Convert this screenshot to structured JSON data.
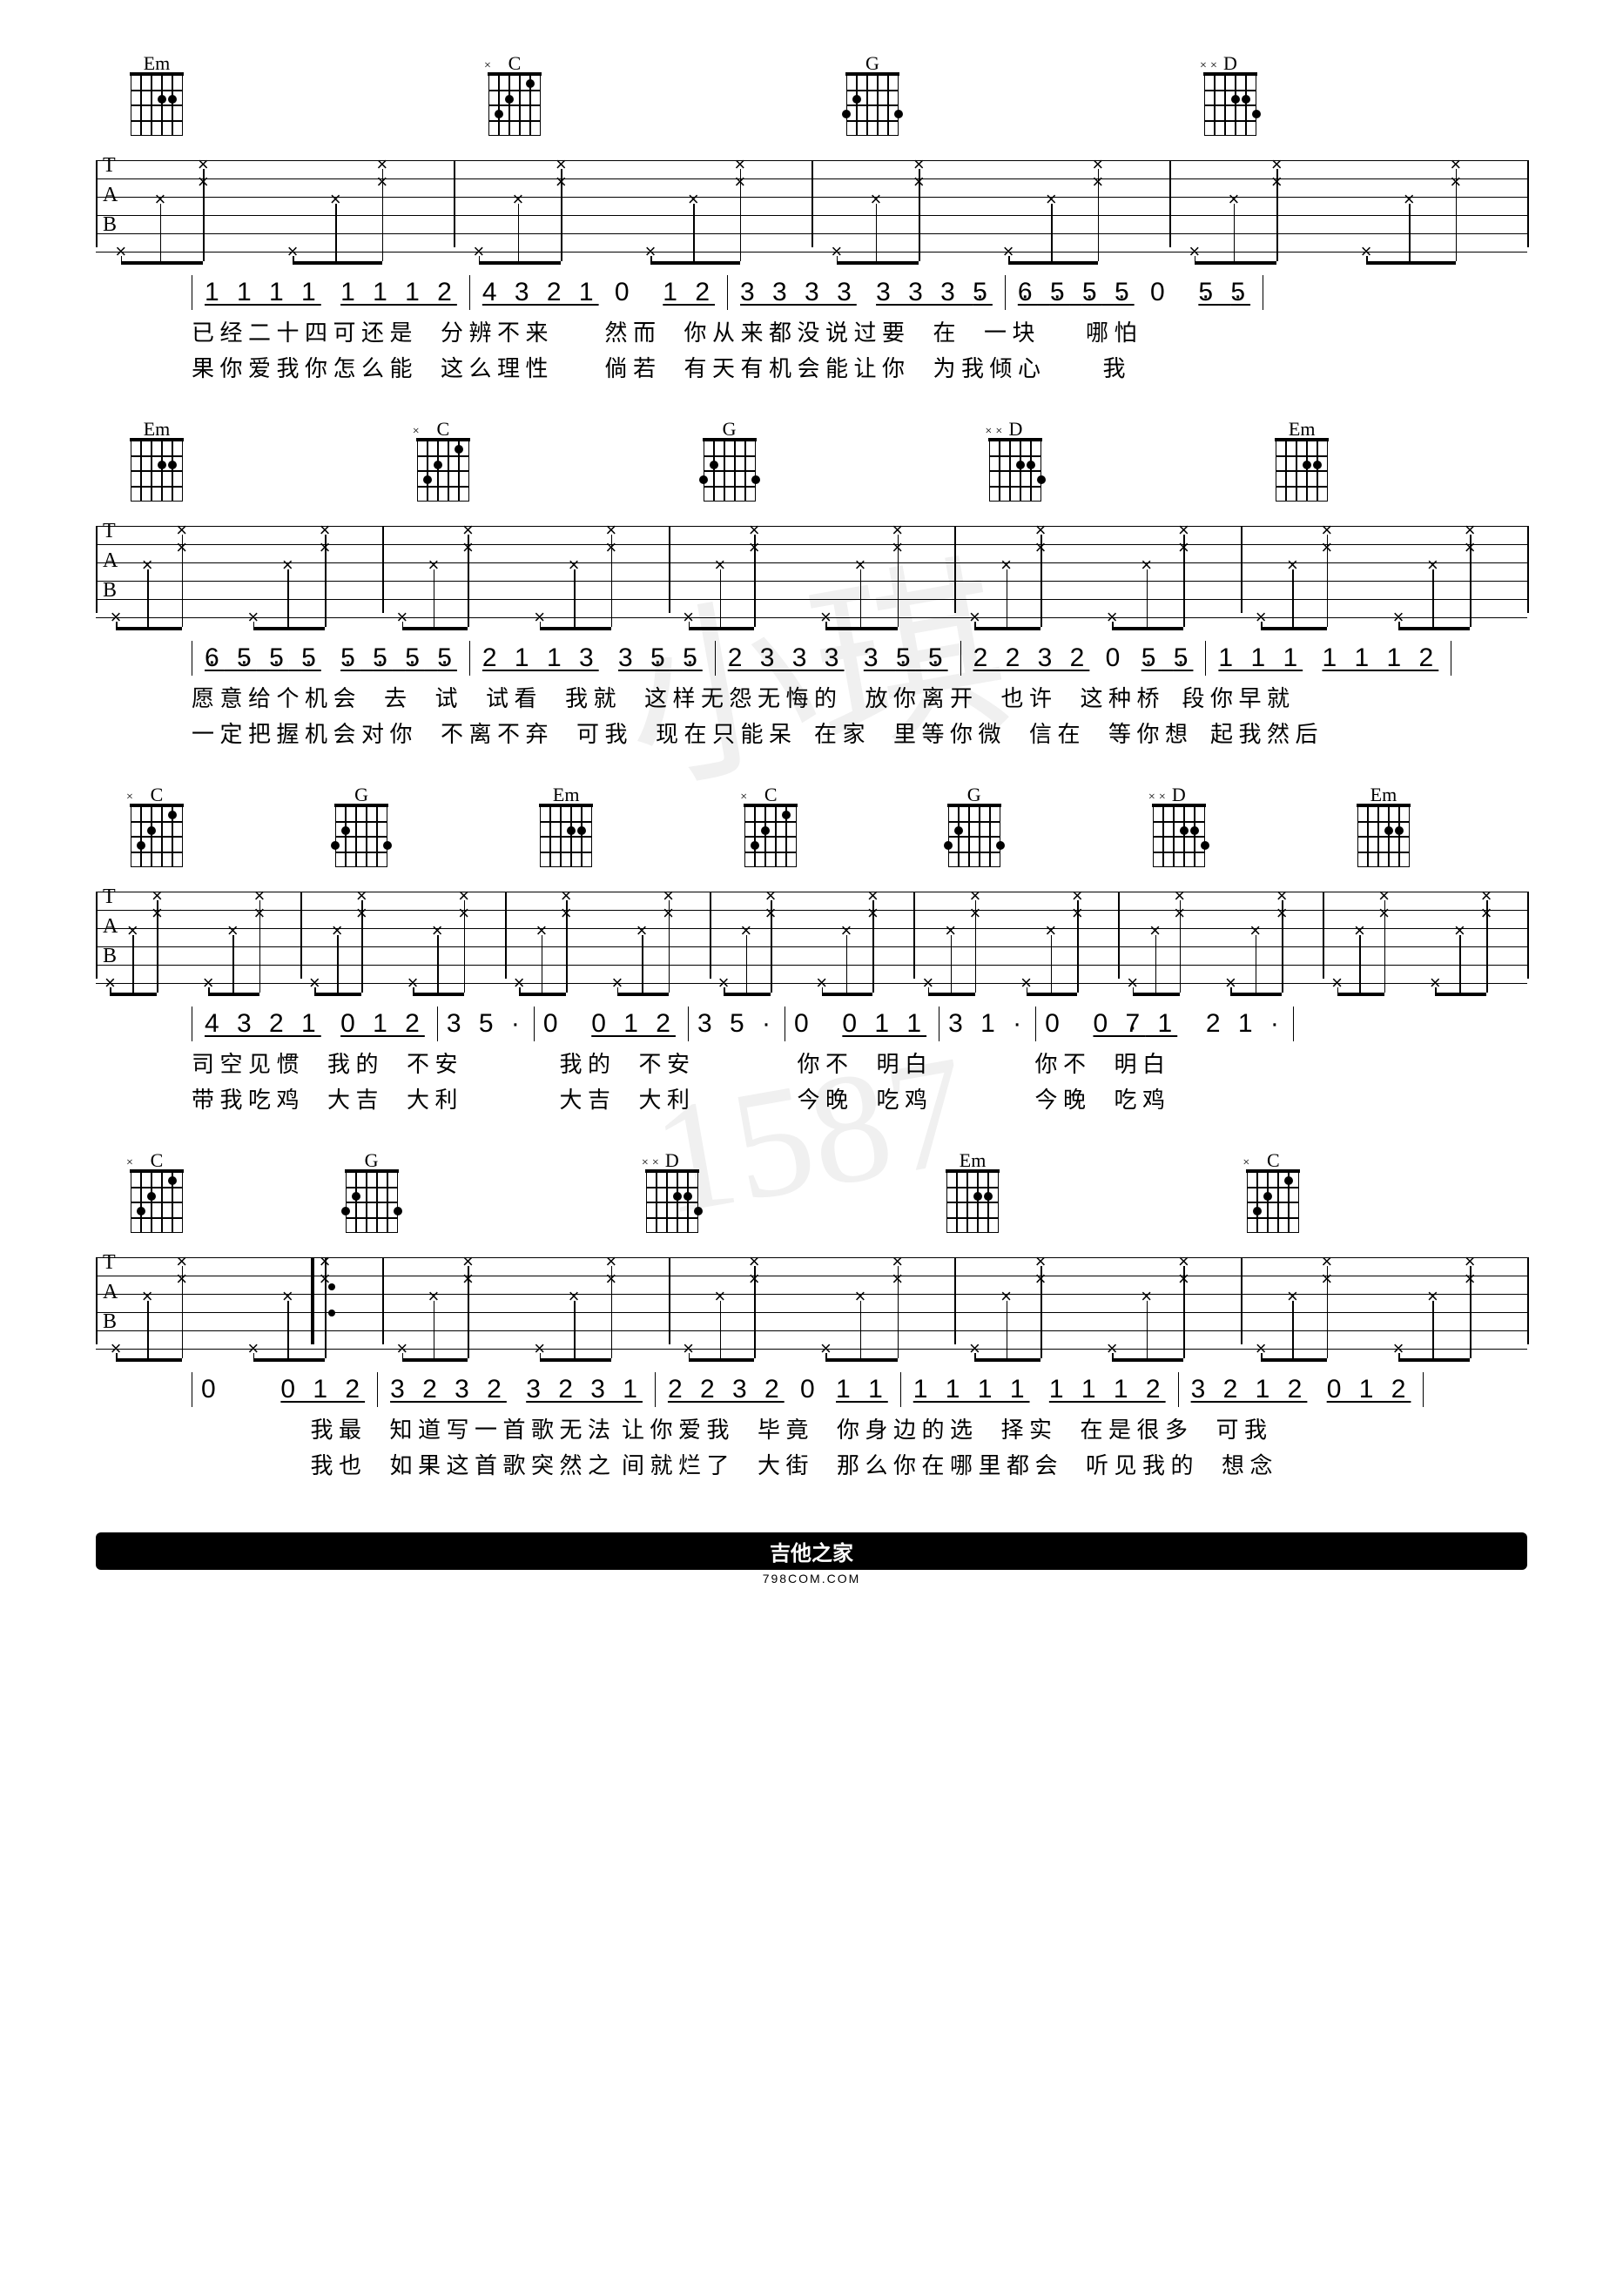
{
  "chords": {
    "Em": {
      "label": "Em",
      "dots": [
        [
          1,
          2
        ],
        [
          1,
          3
        ]
      ],
      "marks": []
    },
    "C": {
      "label": "C",
      "dots": [
        [
          0,
          2
        ],
        [
          1,
          4
        ],
        [
          2,
          5
        ]
      ],
      "marks": [
        [
          "×",
          6
        ]
      ]
    },
    "G": {
      "label": "G",
      "dots": [
        [
          1,
          5
        ],
        [
          2,
          6
        ],
        [
          2,
          1
        ]
      ],
      "marks": []
    },
    "D": {
      "label": "D",
      "dots": [
        [
          1,
          3
        ],
        [
          2,
          1
        ],
        [
          1,
          2
        ]
      ],
      "marks": [
        [
          "×",
          5
        ],
        [
          "×",
          6
        ]
      ]
    }
  },
  "systems": [
    {
      "chords": [
        "Em",
        "C",
        "G",
        "D"
      ],
      "chord_positions": [
        0,
        25,
        50,
        75
      ],
      "tab_pattern": "std4",
      "jianpu": [
        "<span class='grp'>1 1 1 1</span> <span class='grp'>1 1 1 2</span>",
        "<span class='grp'>4 3 2 1</span> 0 &nbsp;<span class='grp'>1 2</span>",
        "<span class='grp'>3 3 3 3</span> <span class='grp'>3 3 3 <span class='dot-below'>5</span></span>",
        "<span class='grp'><span class='dot-below'>6</span> <span class='dot-below'>5</span> <span class='dot-below'>5</span> <span class='dot-below'>5</span></span> 0 &nbsp;<span class='grp'><span class='dot-below'>5</span> <span class='dot-below'>5</span></span>"
      ],
      "lyrics": [
        "已 经 二 十 四 可 还 是　&nbsp;分 辨 不 来　&nbsp;&nbsp;&nbsp;&nbsp;&nbsp;&nbsp;然 而　&nbsp;你 从 来 都 没 说 过 要　&nbsp;在　&nbsp;一 块　&nbsp;&nbsp;&nbsp;&nbsp;&nbsp;哪 怕",
        "果 你 爱 我 你 怎 么 能　&nbsp;这 么 理 性　&nbsp;&nbsp;&nbsp;&nbsp;&nbsp;&nbsp;倘 若　&nbsp;有 天 有 机 会 能 让 你　&nbsp;为 我 倾 心　&nbsp;&nbsp;&nbsp;&nbsp;&nbsp;&nbsp;&nbsp;我"
      ]
    },
    {
      "chords": [
        "Em",
        "C",
        "G",
        "D",
        "Em"
      ],
      "chord_positions": [
        0,
        20,
        40,
        60,
        80
      ],
      "tab_pattern": "std5",
      "jianpu": [
        "<span class='grp'><span class='dot-below'>6</span> <span class='dot-below'>5</span> <span class='dot-below'>5</span> <span class='dot-below'>5</span></span> <span class='grp'><span class='dot-below'>5</span> <span class='dot-below'>5</span> <span class='dot-below'>5</span> <span class='dot-below'>5</span></span>",
        "<span class='grp'>2 1 1 3</span> <span class='grp'>3 <span class='dot-below'>5</span> <span class='dot-below'>5</span></span>",
        "<span class='grp'>2 3 3 3</span> <span class='grp'>3 <span class='dot-below'>5</span> <span class='dot-below'>5</span></span>",
        "<span class='grp'>2 2 3 2</span> 0 <span class='grp'><span class='dot-below'>5</span> <span class='dot-below'>5</span></span>",
        "<span class='grp'>1 1 1</span> <span class='grp'>1 1 1 2</span>"
      ],
      "lyrics": [
        "愿 意 给 个 机 会　&nbsp;去　&nbsp;试　&nbsp;试 看　&nbsp;我 就　&nbsp;这 样 无 怨 无 悔 的　&nbsp;放 你 离 开　&nbsp;也 许　&nbsp;这 种 桥　段 你 早 就",
        "一 定 把 握 机 会 对 你　&nbsp;不 离 不 弃　&nbsp;可 我　&nbsp;现 在 只 能 呆　在 家　&nbsp;里 等 你 微　&nbsp;信 在　&nbsp;等 你 想　起 我 然 后"
      ]
    },
    {
      "chords": [
        "C",
        "G",
        "Em",
        "C",
        "G",
        "D",
        "Em"
      ],
      "chord_positions": [
        0,
        14.3,
        28.6,
        42.9,
        57.1,
        71.4,
        85.7
      ],
      "tab_pattern": "std7",
      "jianpu": [
        "<span class='grp'>4 3 2 1</span> <span class='grp'>0 1 2</span>",
        "3 5 ·",
        "0 &nbsp;<span class='grp'>0 1 2</span>",
        "3 5 ·",
        "0 &nbsp;<span class='grp'>0 1 1</span>",
        "3 1 ·",
        "0 &nbsp;<span class='grp'>0 <span class='dot-below'>7</span> 1</span>&nbsp; 2 1 ·"
      ],
      "lyrics": [
        "司 空 见 惯　&nbsp;我 的　&nbsp;不 安　&nbsp;&nbsp;&nbsp;&nbsp;&nbsp;&nbsp;　&nbsp;&nbsp;&nbsp;&nbsp;我 的　&nbsp;不 安　&nbsp;&nbsp;&nbsp;&nbsp;&nbsp;　&nbsp;&nbsp;&nbsp;&nbsp;&nbsp;&nbsp;你 不　&nbsp;明 白　&nbsp;&nbsp;&nbsp;&nbsp;&nbsp;　&nbsp;&nbsp;&nbsp;&nbsp;&nbsp;&nbsp;你 不　&nbsp;明 白",
        "带 我 吃 鸡　&nbsp;大 吉　&nbsp;大 利　&nbsp;&nbsp;&nbsp;&nbsp;&nbsp;&nbsp;　&nbsp;&nbsp;&nbsp;&nbsp;大 吉　&nbsp;大 利　&nbsp;&nbsp;&nbsp;&nbsp;&nbsp;　&nbsp;&nbsp;&nbsp;&nbsp;&nbsp;&nbsp;今 晚　&nbsp;吃 鸡　&nbsp;&nbsp;&nbsp;&nbsp;&nbsp;　&nbsp;&nbsp;&nbsp;&nbsp;&nbsp;&nbsp;今 晚　&nbsp;吃 鸡"
      ]
    },
    {
      "chords": [
        "C",
        "G",
        "D",
        "Em",
        "C"
      ],
      "chord_positions": [
        0,
        15,
        36,
        57,
        78
      ],
      "tab_pattern": "std5b",
      "repeat_start": 15,
      "jianpu": [
        "0　&nbsp;&nbsp;<span class='grp'>0 1 2</span>",
        "<span class='grp'>3 2 3 2</span> <span class='grp'>3 2 3 1</span>",
        "<span class='grp'>2 2 3 2</span> 0 <span class='grp'>1 1</span>",
        "<span class='grp'>1 1 1 1</span> <span class='grp'>1 1 1 2</span>",
        "<span class='grp'>3 2 1 2</span> <span class='grp'>0 1 2</span>"
      ],
      "lyrics": [
        "　　　　&nbsp;&nbsp;&nbsp;&nbsp;&nbsp;我 最　&nbsp;知 道 写 一 首 歌 无 法&nbsp;&nbsp;让 你 爱 我　&nbsp;毕 竟　&nbsp;你 身 边 的 选　&nbsp;择 实　&nbsp;在 是 很 多　&nbsp;可 我",
        "　　　　&nbsp;&nbsp;&nbsp;&nbsp;&nbsp;我 也　&nbsp;如 果 这 首 歌 突 然 之&nbsp;&nbsp;间 就 烂 了　&nbsp;大 街　&nbsp;那 么 你 在 哪 里 都 会　&nbsp;听 见 我 的　&nbsp;想 念"
      ]
    }
  ],
  "footer": {
    "big": "吉他之家",
    "small": "798COM.COM"
  }
}
